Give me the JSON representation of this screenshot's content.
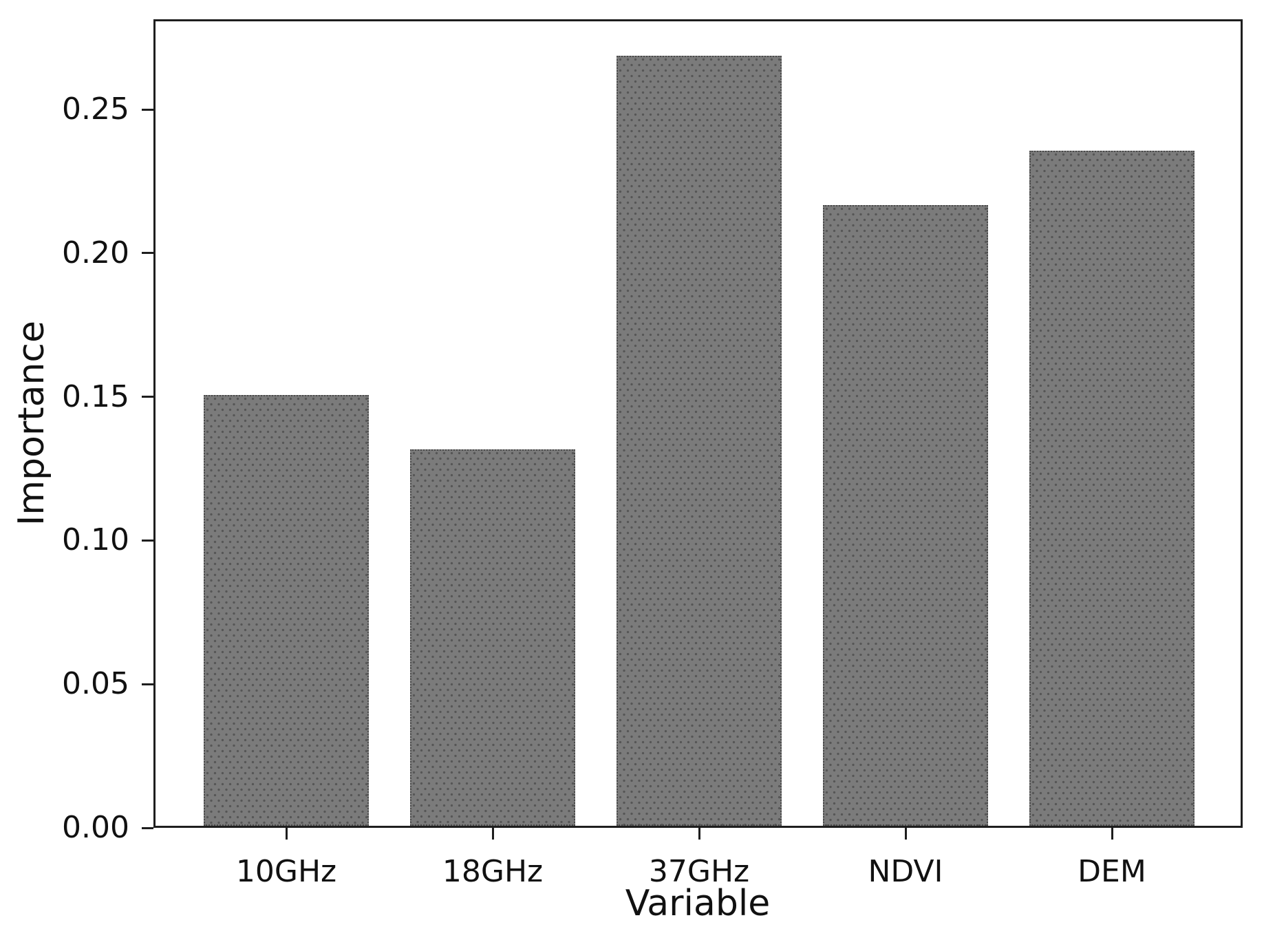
{
  "figure": {
    "background_color": "#ffffff",
    "text_color": "#111111",
    "spine_color": "#1e1e1e"
  },
  "chart_data": {
    "type": "bar",
    "title": "",
    "xlabel": "Variable",
    "ylabel": "Importance",
    "categories": [
      "10GHz",
      "18GHz",
      "37GHz",
      "NDVI",
      "DEM"
    ],
    "values": [
      0.15,
      0.131,
      0.268,
      0.216,
      0.235
    ],
    "yticks": [
      0.0,
      0.05,
      0.1,
      0.15,
      0.2,
      0.25
    ],
    "ytick_labels": [
      "0.00",
      "0.05",
      "0.10",
      "0.15",
      "0.20",
      "0.25"
    ],
    "ylim": [
      0,
      0.2814
    ],
    "grid": false,
    "legend_position": "none",
    "bar_fill_color": "#7b7b7b",
    "bar_hatch": "dots",
    "bar_hatch_color": "#565656",
    "bar_edge_color": "#4a4a4a"
  }
}
